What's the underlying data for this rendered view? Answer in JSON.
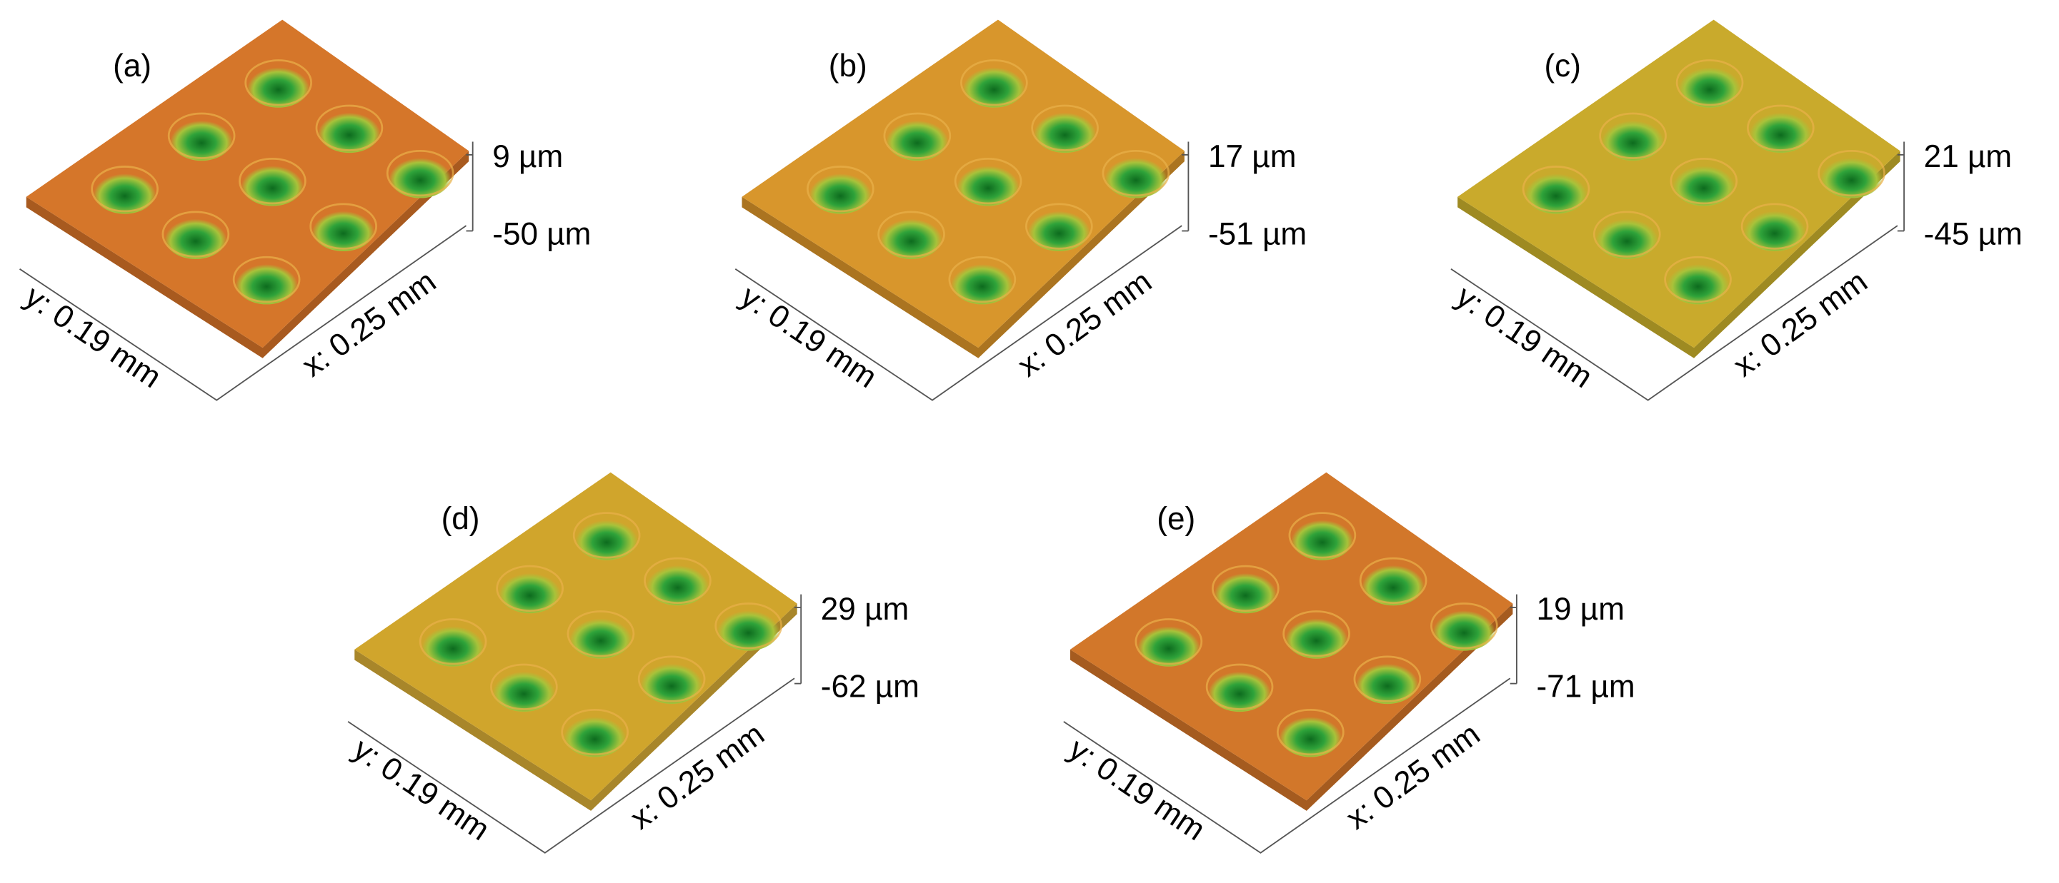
{
  "panels": [
    {
      "label": "(a)",
      "z_max": "9 µm",
      "z_min": "-50 µm",
      "y_axis": "y: 0.19 mm",
      "x_axis": "x: 0.25 mm"
    },
    {
      "label": "(b)",
      "z_max": "17 µm",
      "z_min": "-51 µm",
      "y_axis": "y: 0.19 mm",
      "x_axis": "x: 0.25 mm"
    },
    {
      "label": "(c)",
      "z_max": "21 µm",
      "z_min": "-45 µm",
      "y_axis": "y: 0.19 mm",
      "x_axis": "x: 0.25 mm"
    },
    {
      "label": "(d)",
      "z_max": "29 µm",
      "z_min": "-62 µm",
      "y_axis": "y: 0.19 mm",
      "x_axis": "x: 0.25 mm"
    },
    {
      "label": "(e)",
      "z_max": "19 µm",
      "z_min": "-71 µm",
      "y_axis": "y: 0.19 mm",
      "x_axis": "x: 0.25 mm"
    }
  ]
}
